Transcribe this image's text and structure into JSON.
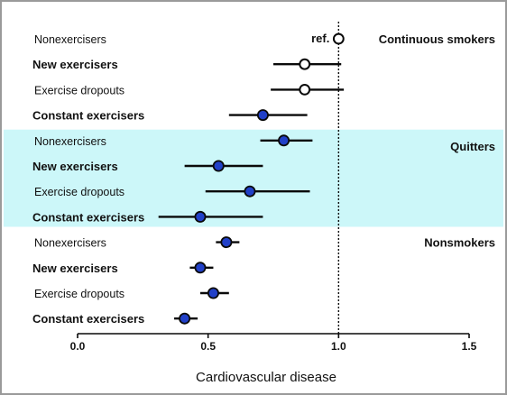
{
  "chart_data": {
    "type": "forest",
    "xlabel": "Cardiovascular disease",
    "xlim": [
      0.0,
      1.5
    ],
    "xticks": [
      0.0,
      0.5,
      1.0,
      1.5
    ],
    "xtick_labels": [
      "0.0",
      "0.5",
      "1.0",
      "1.5"
    ],
    "reference_line": 1.0,
    "reference_label": "ref.",
    "groups": [
      {
        "name": "Continuous smokers",
        "highlight": false,
        "rows": [
          {
            "label": "Nonexercisers",
            "bold": false,
            "estimate": 1.0,
            "lower": null,
            "upper": null,
            "marker": "open"
          },
          {
            "label": "New exercisers",
            "bold": true,
            "estimate": 0.87,
            "lower": 0.75,
            "upper": 1.01,
            "marker": "open"
          },
          {
            "label": "Exercise dropouts",
            "bold": false,
            "estimate": 0.87,
            "lower": 0.74,
            "upper": 1.02,
            "marker": "open"
          },
          {
            "label": "Constant exercisers",
            "bold": true,
            "estimate": 0.71,
            "lower": 0.58,
            "upper": 0.88,
            "marker": "filled"
          }
        ]
      },
      {
        "name": "Quitters",
        "highlight": true,
        "rows": [
          {
            "label": "Nonexercisers",
            "bold": false,
            "estimate": 0.79,
            "lower": 0.7,
            "upper": 0.9,
            "marker": "filled"
          },
          {
            "label": "New exercisers",
            "bold": true,
            "estimate": 0.54,
            "lower": 0.41,
            "upper": 0.71,
            "marker": "filled"
          },
          {
            "label": "Exercise dropouts",
            "bold": false,
            "estimate": 0.66,
            "lower": 0.49,
            "upper": 0.89,
            "marker": "filled"
          },
          {
            "label": "Constant exercisers",
            "bold": true,
            "estimate": 0.47,
            "lower": 0.31,
            "upper": 0.71,
            "marker": "filled"
          }
        ]
      },
      {
        "name": "Nonsmokers",
        "highlight": false,
        "rows": [
          {
            "label": "Nonexercisers",
            "bold": false,
            "estimate": 0.57,
            "lower": 0.53,
            "upper": 0.62,
            "marker": "filled"
          },
          {
            "label": "New exercisers",
            "bold": true,
            "estimate": 0.47,
            "lower": 0.43,
            "upper": 0.52,
            "marker": "filled"
          },
          {
            "label": "Exercise dropouts",
            "bold": false,
            "estimate": 0.52,
            "lower": 0.47,
            "upper": 0.58,
            "marker": "filled"
          },
          {
            "label": "Constant exercisers",
            "bold": true,
            "estimate": 0.41,
            "lower": 0.37,
            "upper": 0.46,
            "marker": "filled"
          }
        ]
      }
    ],
    "colors": {
      "marker_fill": "#2140c8",
      "marker_stroke": "#0a0a0a",
      "highlight_band": "#ccf7f9",
      "line": "#0a0a0a"
    }
  }
}
